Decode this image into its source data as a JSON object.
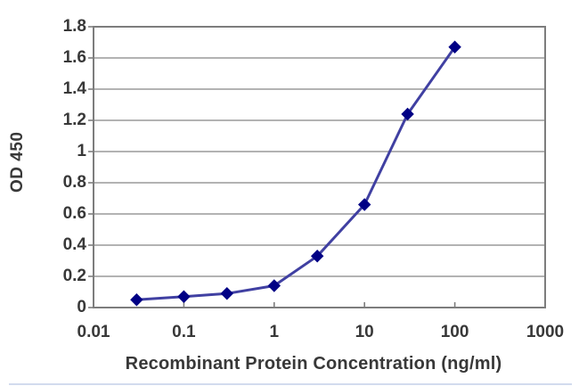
{
  "chart_data": {
    "type": "line",
    "title": "",
    "xlabel": "Recombinant Protein Concentration (ng/ml)",
    "ylabel": "OD 450",
    "x_scale": "log",
    "y_scale": "linear",
    "xlim": [
      0.01,
      1000
    ],
    "ylim": [
      0,
      1.8
    ],
    "x_ticks": [
      0.01,
      0.1,
      1,
      10,
      100,
      1000
    ],
    "x_tick_labels": [
      "0.01",
      "0.1",
      "1",
      "10",
      "100",
      "1000"
    ],
    "y_ticks": [
      0,
      0.2,
      0.4,
      0.6,
      0.8,
      1,
      1.2,
      1.4,
      1.6,
      1.8
    ],
    "y_tick_labels": [
      "0",
      "0.2",
      "0.4",
      "0.6",
      "0.8",
      "1",
      "1.2",
      "1.4",
      "1.6",
      "1.8"
    ],
    "grid": "horizontal-only",
    "legend": "none",
    "series": [
      {
        "name": "OD 450",
        "x": [
          0.03,
          0.1,
          0.3,
          1,
          3,
          10,
          30,
          100
        ],
        "y": [
          0.05,
          0.07,
          0.09,
          0.14,
          0.33,
          0.66,
          1.24,
          1.67
        ],
        "marker": "diamond"
      }
    ]
  },
  "colors": {
    "background": "#ffffff",
    "plot_border": "#7d7d7d",
    "gridline": "#9a9a9a",
    "tick": "#7d7d7d",
    "line": "#4040a2",
    "marker": "#000085",
    "text": "#383838",
    "bottom_edge_artifact": "#c3cfe8"
  }
}
